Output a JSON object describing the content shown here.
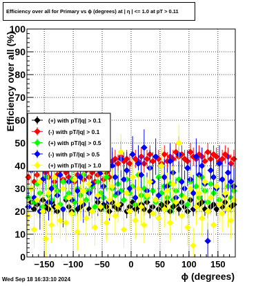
{
  "title": "Efficiency over all for Primary vs ϕ (degrees) at |  η | <= 1.0 at pT > 0.11",
  "timestamp": "Wed Sep 18 16:33:10 2024",
  "chart_data": {
    "type": "scatter",
    "title": "Efficiency over all for Primary vs ϕ (degrees) at |  η | <= 1.0 at pT > 0.11",
    "xlabel": "ϕ (degrees)",
    "ylabel": "Efficiency over all (%)",
    "xlim": [
      -180,
      180
    ],
    "ylim": [
      0,
      100
    ],
    "xticks": [
      -150,
      -100,
      -50,
      0,
      50,
      100,
      150
    ],
    "xtick_labels": [
      "−150",
      "−100",
      "−50",
      "0",
      "50",
      "100",
      "150"
    ],
    "yticks": [
      0,
      10,
      20,
      30,
      40,
      50,
      60,
      70,
      80,
      90,
      100
    ],
    "ytick_labels": [
      "0",
      "10",
      "20",
      "30",
      "40",
      "50",
      "60",
      "70",
      "80",
      "90",
      "100"
    ],
    "grid": true,
    "legend_position": "left",
    "n_points_per_series": 72,
    "x_start": -177.5,
    "x_step": 5,
    "series": [
      {
        "name": "(+) with pT/|q| > 0.1",
        "color": "#000000",
        "y": [
          22,
          24,
          21,
          23,
          20,
          25,
          22,
          21,
          24,
          22,
          20,
          23,
          21,
          25,
          22,
          20,
          24,
          21,
          22,
          23,
          25,
          21,
          20,
          22,
          24,
          21,
          23,
          22,
          20,
          24,
          22,
          21,
          23,
          25,
          20,
          22,
          24,
          21,
          22,
          23,
          21,
          24,
          20,
          22,
          25,
          21,
          23,
          22,
          24,
          20,
          22,
          23,
          21,
          24,
          22,
          20,
          25,
          21,
          22,
          23,
          24,
          21,
          20,
          22,
          23,
          21,
          25,
          22,
          24,
          21,
          22,
          23
        ],
        "err": [
          3,
          3,
          3,
          3,
          3,
          3,
          3,
          3,
          3,
          3,
          3,
          3,
          3,
          3,
          3,
          3,
          3,
          3,
          3,
          3,
          3,
          3,
          3,
          3,
          3,
          3,
          3,
          3,
          3,
          3,
          3,
          3,
          3,
          3,
          3,
          3,
          3,
          3,
          3,
          3,
          3,
          3,
          3,
          3,
          3,
          3,
          3,
          3,
          3,
          3,
          3,
          3,
          3,
          3,
          3,
          3,
          3,
          3,
          3,
          3,
          3,
          3,
          3,
          3,
          3,
          3,
          3,
          3,
          3,
          3,
          3,
          3
        ]
      },
      {
        "name": "(-) with pT/|q| > 0.1",
        "color": "#ff0000",
        "y": [
          35,
          38,
          33,
          36,
          40,
          34,
          37,
          35,
          39,
          33,
          36,
          38,
          34,
          37,
          35,
          40,
          33,
          36,
          39,
          34,
          38,
          35,
          37,
          33,
          36,
          40,
          34,
          37,
          35,
          42,
          43,
          41,
          44,
          42,
          43,
          41,
          45,
          43,
          42,
          44,
          41,
          43,
          45,
          42,
          44,
          43,
          41,
          45,
          42,
          44,
          43,
          46,
          44,
          45,
          43,
          42,
          46,
          44,
          43,
          45,
          44,
          42,
          46,
          43,
          45,
          44,
          42,
          43,
          45,
          44,
          41,
          43
        ],
        "err": [
          5,
          5,
          5,
          5,
          5,
          5,
          5,
          5,
          5,
          5,
          5,
          5,
          5,
          5,
          5,
          5,
          5,
          5,
          5,
          5,
          5,
          5,
          5,
          5,
          5,
          5,
          5,
          5,
          5,
          4,
          4,
          4,
          4,
          4,
          4,
          4,
          4,
          4,
          4,
          4,
          4,
          4,
          4,
          4,
          4,
          4,
          4,
          4,
          4,
          4,
          4,
          4,
          4,
          4,
          4,
          4,
          4,
          4,
          4,
          4,
          4,
          4,
          4,
          4,
          4,
          4,
          4,
          4,
          4,
          4,
          4,
          4
        ]
      },
      {
        "name": "(+) with pT/|q| > 0.5",
        "color": "#00ff00",
        "y": [
          26,
          30,
          24,
          32,
          28,
          22,
          35,
          27,
          25,
          31,
          29,
          23,
          33,
          26,
          28,
          34,
          24,
          30,
          27,
          36,
          25,
          29,
          31,
          22,
          33,
          28,
          26,
          35,
          24,
          30,
          27,
          32,
          29,
          25,
          34,
          28,
          31,
          23,
          36,
          27,
          30,
          26,
          33,
          29,
          24,
          35,
          28,
          31,
          26,
          32,
          25,
          29,
          34,
          27,
          30,
          23,
          33,
          28,
          31,
          26,
          35,
          29,
          24,
          32,
          28,
          30,
          25,
          34,
          27,
          31,
          26,
          29
        ],
        "err": [
          6,
          6,
          6,
          6,
          6,
          6,
          6,
          6,
          6,
          6,
          6,
          6,
          6,
          6,
          6,
          6,
          6,
          6,
          6,
          6,
          6,
          6,
          6,
          6,
          6,
          6,
          6,
          6,
          6,
          6,
          6,
          6,
          6,
          6,
          6,
          6,
          6,
          6,
          6,
          6,
          6,
          6,
          6,
          6,
          6,
          6,
          6,
          6,
          6,
          6,
          6,
          6,
          6,
          6,
          6,
          6,
          6,
          6,
          6,
          6,
          6,
          6,
          6,
          6,
          6,
          6,
          6,
          6,
          6,
          6,
          6,
          6
        ]
      },
      {
        "name": "(-) with pT/|q| > 0.5",
        "color": "#0000ff",
        "y": [
          22,
          38,
          26,
          45,
          20,
          34,
          40,
          24,
          30,
          42,
          27,
          36,
          21,
          44,
          33,
          25,
          39,
          29,
          35,
          23,
          41,
          28,
          32,
          46,
          26,
          37,
          31,
          52,
          24,
          40,
          35,
          28,
          43,
          34,
          38,
          30,
          45,
          26,
          41,
          36,
          48,
          29,
          39,
          33,
          44,
          27,
          40,
          35,
          31,
          42,
          37,
          26,
          45,
          33,
          30,
          39,
          34,
          28,
          44,
          36,
          40,
          32,
          7,
          38,
          35,
          30,
          41,
          34,
          27,
          37,
          33,
          31
        ],
        "err": [
          8,
          8,
          8,
          8,
          8,
          8,
          8,
          8,
          8,
          8,
          8,
          8,
          8,
          8,
          8,
          8,
          8,
          8,
          8,
          8,
          8,
          8,
          8,
          8,
          8,
          8,
          8,
          8,
          8,
          8,
          8,
          8,
          8,
          8,
          8,
          8,
          8,
          8,
          8,
          8,
          8,
          8,
          8,
          8,
          8,
          8,
          8,
          8,
          8,
          8,
          8,
          8,
          8,
          8,
          8,
          8,
          8,
          8,
          8,
          8,
          8,
          8,
          8,
          8,
          8,
          8,
          8,
          8,
          8,
          8,
          8,
          8
        ]
      },
      {
        "name": "(+) with pT/|q| > 1.0",
        "color": "#ffff00",
        "y": [
          18,
          30,
          12,
          25,
          33,
          20,
          8,
          28,
          14,
          35,
          22,
          16,
          30,
          15,
          26,
          19,
          34,
          11,
          24,
          29,
          17,
          32,
          20,
          13,
          27,
          22,
          38,
          15,
          25,
          31,
          18,
          23,
          46,
          12,
          28,
          20,
          35,
          16,
          30,
          22,
          14,
          27,
          33,
          19,
          25,
          17,
          40,
          21,
          29,
          15,
          32,
          24,
          50,
          18,
          26,
          13,
          30,
          5,
          22,
          28,
          17,
          33,
          20,
          26,
          14,
          31,
          23,
          19,
          28,
          21,
          16,
          25
        ],
        "err": [
          8,
          8,
          8,
          8,
          8,
          8,
          8,
          8,
          8,
          8,
          8,
          8,
          8,
          8,
          8,
          8,
          8,
          8,
          8,
          8,
          8,
          8,
          8,
          8,
          8,
          8,
          8,
          8,
          8,
          8,
          8,
          8,
          8,
          8,
          8,
          8,
          8,
          8,
          8,
          8,
          8,
          8,
          8,
          8,
          8,
          8,
          8,
          8,
          8,
          8,
          8,
          8,
          8,
          8,
          8,
          8,
          8,
          8,
          8,
          8,
          8,
          8,
          8,
          8,
          8,
          8,
          8,
          8,
          8,
          8,
          8,
          8
        ]
      }
    ]
  }
}
